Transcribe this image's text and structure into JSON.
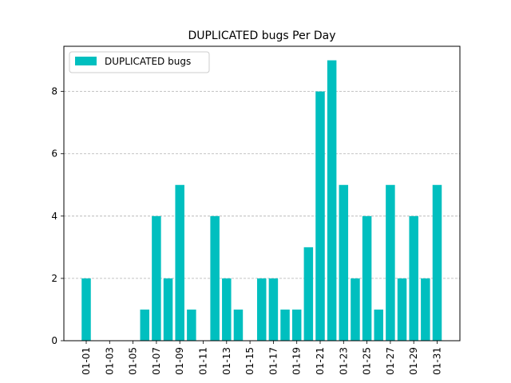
{
  "chart_data": {
    "type": "bar",
    "title": "DUPLICATED bugs Per Day",
    "xlabel": "",
    "ylabel": "",
    "categories": [
      "01-01",
      "01-02",
      "01-03",
      "01-04",
      "01-05",
      "01-06",
      "01-07",
      "01-08",
      "01-09",
      "01-10",
      "01-11",
      "01-12",
      "01-13",
      "01-14",
      "01-15",
      "01-16",
      "01-17",
      "01-18",
      "01-19",
      "01-20",
      "01-21",
      "01-22",
      "01-23",
      "01-24",
      "01-25",
      "01-26",
      "01-27",
      "01-28",
      "01-29",
      "01-30",
      "01-31"
    ],
    "series": [
      {
        "name": "DUPLICATED bugs",
        "values": [
          2,
          0,
          0,
          0,
          0,
          1,
          4,
          2,
          5,
          1,
          0,
          4,
          2,
          1,
          0,
          2,
          2,
          1,
          1,
          3,
          8,
          9,
          5,
          2,
          4,
          1,
          5,
          2,
          4,
          2,
          5
        ]
      }
    ],
    "xtick_labels": [
      "01-01",
      "01-03",
      "01-05",
      "01-07",
      "01-09",
      "01-11",
      "01-13",
      "01-15",
      "01-17",
      "01-19",
      "01-21",
      "01-23",
      "01-25",
      "01-27",
      "01-29",
      "01-31"
    ],
    "ylim": [
      0,
      9.45
    ],
    "yticks": [
      0,
      2,
      4,
      6,
      8
    ],
    "grid": "y-dashed",
    "legend_position": "upper-left",
    "bar_color": "#00bfbf"
  }
}
